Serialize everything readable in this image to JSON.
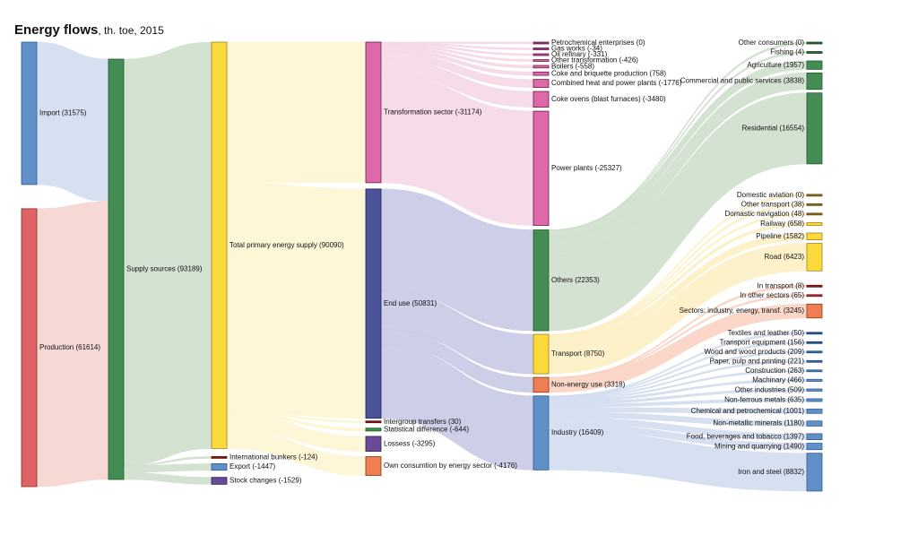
{
  "title": {
    "main": "Energy flows",
    "sub": ", th. toe, 2015"
  },
  "chart_data": {
    "type": "sankey",
    "title": "Energy flows, th. toe, 2015",
    "units": "th. toe",
    "year": 2015,
    "nodes": [
      {
        "id": "import",
        "label": "Import (31575)",
        "name": "Import",
        "value": 31575,
        "column": 0,
        "color": "#6190c9"
      },
      {
        "id": "production",
        "label": "Production (61614)",
        "name": "Production",
        "value": 61614,
        "column": 0,
        "color": "#de6364"
      },
      {
        "id": "supply",
        "label": "Supply sources (93189)",
        "name": "Supply sources",
        "value": 93189,
        "column": 1,
        "color": "#448c53"
      },
      {
        "id": "tpes",
        "label": "Total primary energy supply (90090)",
        "name": "Total primary energy supply",
        "value": 90090,
        "column": 2,
        "color": "#fdd93b"
      },
      {
        "id": "bunkers",
        "label": "International bunkers (-124)",
        "name": "International bunkers",
        "value": -124,
        "column": 2,
        "color": "#8b1a1a"
      },
      {
        "id": "export",
        "label": "Export (-1447)",
        "name": "Export",
        "value": -1447,
        "column": 2,
        "color": "#6190c9"
      },
      {
        "id": "stock",
        "label": "Stock changes (-1529)",
        "name": "Stock changes",
        "value": -1529,
        "column": 2,
        "color": "#6a4a96"
      },
      {
        "id": "transform",
        "label": "Transformation sector (-31174)",
        "name": "Transformation sector",
        "value": -31174,
        "column": 3,
        "color": "#dd69a8"
      },
      {
        "id": "enduse",
        "label": "End use (50831)",
        "name": "End use",
        "value": 50831,
        "column": 3,
        "color": "#4a5299"
      },
      {
        "id": "intergroup",
        "label": "Intergroup transfers (30)",
        "name": "Intergroup transfers",
        "value": 30,
        "column": 3,
        "color": "#8b1a1a"
      },
      {
        "id": "statdiff",
        "label": "Statistical difference (-644)",
        "name": "Statistical difference",
        "value": -644,
        "column": 3,
        "color": "#3a9048"
      },
      {
        "id": "losses",
        "label": "Lossess (-3295)",
        "name": "Lossess",
        "value": -3295,
        "column": 3,
        "color": "#6a4a96"
      },
      {
        "id": "ownuse",
        "label": "Own consumtion by energy sector (-4176)",
        "name": "Own consumtion by energy sector",
        "value": -4176,
        "column": 3,
        "color": "#ef7f52"
      },
      {
        "id": "petrochem",
        "label": "Petrochemical enterprises (0)",
        "name": "Petrochemical enterprises",
        "value": 0,
        "column": 4,
        "color": "#a5336f"
      },
      {
        "id": "gasworks",
        "label": "Gas works (-34)",
        "name": "Gas works",
        "value": -34,
        "column": 4,
        "color": "#a5336f"
      },
      {
        "id": "oilref",
        "label": "Oil refinary (-331)",
        "name": "Oil refinary",
        "value": -331,
        "column": 4,
        "color": "#c04488"
      },
      {
        "id": "othertrans",
        "label": "Other transformation (-426)",
        "name": "Other transformation",
        "value": -426,
        "column": 4,
        "color": "#dd69a8"
      },
      {
        "id": "boilers",
        "label": "Boilers (-558)",
        "name": "Boilers",
        "value": -558,
        "column": 4,
        "color": "#dd69a8"
      },
      {
        "id": "coke",
        "label": "Coke and briquette production (758)",
        "name": "Coke and briquette production",
        "value": 758,
        "column": 4,
        "color": "#dd69a8"
      },
      {
        "id": "chp",
        "label": "Combined heat and power plants (-1776)",
        "name": "Combined heat and power plants",
        "value": -1776,
        "column": 4,
        "color": "#dd69a8"
      },
      {
        "id": "cokeovens",
        "label": "Coke ovens (blast furnaces) (-3480)",
        "name": "Coke ovens (blast furnaces)",
        "value": -3480,
        "column": 4,
        "color": "#dd69a8"
      },
      {
        "id": "powerplants",
        "label": "Power plants (-25327)",
        "name": "Power plants",
        "value": -25327,
        "column": 4,
        "color": "#dd69a8"
      },
      {
        "id": "others",
        "label": "Others (22353)",
        "name": "Others",
        "value": 22353,
        "column": 4,
        "color": "#448c53"
      },
      {
        "id": "transport",
        "label": "Transport (8750)",
        "name": "Transport",
        "value": 8750,
        "column": 4,
        "color": "#fdd93b"
      },
      {
        "id": "nonenergy",
        "label": "Non-energy use (3318)",
        "name": "Non-energy use",
        "value": 3318,
        "column": 4,
        "color": "#ef7f52"
      },
      {
        "id": "industry",
        "label": "Industry (16409)",
        "name": "Industry",
        "value": 16409,
        "column": 4,
        "color": "#6190c9"
      },
      {
        "id": "othercons",
        "label": "Other consumers (0)",
        "name": "Other consumers",
        "value": 0,
        "column": 5,
        "color": "#2d6a36"
      },
      {
        "id": "fishing",
        "label": "Fishing (4)",
        "name": "Fishing",
        "value": 4,
        "column": 5,
        "color": "#2d6a36"
      },
      {
        "id": "agri",
        "label": "Agriculture (1957)",
        "name": "Agriculture",
        "value": 1957,
        "column": 5,
        "color": "#448c53"
      },
      {
        "id": "commercial",
        "label": "Commercial and public services (3838)",
        "name": "Commercial and public services",
        "value": 3838,
        "column": 5,
        "color": "#448c53"
      },
      {
        "id": "residential",
        "label": "Residential (16554)",
        "name": "Residential",
        "value": 16554,
        "column": 5,
        "color": "#448c53"
      },
      {
        "id": "domaviation",
        "label": "Domestic aviation (0)",
        "name": "Domestic aviation",
        "value": 0,
        "column": 5,
        "color": "#8a7020"
      },
      {
        "id": "othertransport",
        "label": "Other transport (38)",
        "name": "Other transport",
        "value": 38,
        "column": 5,
        "color": "#8a7020"
      },
      {
        "id": "domnav",
        "label": "Domastic navigation (48)",
        "name": "Domastic navigation",
        "value": 48,
        "column": 5,
        "color": "#8a7020"
      },
      {
        "id": "railway",
        "label": "Railway (658)",
        "name": "Railway",
        "value": 658,
        "column": 5,
        "color": "#fdd93b"
      },
      {
        "id": "pipeline",
        "label": "Pipeline (1582)",
        "name": "Pipeline",
        "value": 1582,
        "column": 5,
        "color": "#fdd93b"
      },
      {
        "id": "road",
        "label": "Road (6423)",
        "name": "Road",
        "value": 6423,
        "column": 5,
        "color": "#fdd93b"
      },
      {
        "id": "intransport",
        "label": "In transport (8)",
        "name": "In transport",
        "value": 8,
        "column": 5,
        "color": "#8b1a1a"
      },
      {
        "id": "inother",
        "label": "In other sectors (65)",
        "name": "In other sectors",
        "value": 65,
        "column": 5,
        "color": "#b03030"
      },
      {
        "id": "sectors",
        "label": "Sectors: industry, energy, transf. (3245)",
        "name": "Sectors: industry, energy, transf.",
        "value": 3245,
        "column": 5,
        "color": "#ef7f52"
      },
      {
        "id": "textiles",
        "label": "Textiles and leather (50)",
        "name": "Textiles and leather",
        "value": 50,
        "column": 5,
        "color": "#2f5a9a"
      },
      {
        "id": "transeq",
        "label": "Transport equipment (156)",
        "name": "Transport equipment",
        "value": 156,
        "column": 5,
        "color": "#2f5a9a"
      },
      {
        "id": "wood",
        "label": "Wood and wood products (209)",
        "name": "Wood and wood products",
        "value": 209,
        "column": 5,
        "color": "#3a6aaa"
      },
      {
        "id": "paper",
        "label": "Paper, pulp and printing (221)",
        "name": "Paper, pulp and printing",
        "value": 221,
        "column": 5,
        "color": "#3a6aaa"
      },
      {
        "id": "construction",
        "label": "Construction (263)",
        "name": "Construction",
        "value": 263,
        "column": 5,
        "color": "#4a78b8"
      },
      {
        "id": "machinery",
        "label": "Machinary (466)",
        "name": "Machinary",
        "value": 466,
        "column": 5,
        "color": "#6190c9"
      },
      {
        "id": "otherind",
        "label": "Other industries (509)",
        "name": "Other industries",
        "value": 509,
        "column": 5,
        "color": "#6190c9"
      },
      {
        "id": "nonferrous",
        "label": "Non-ferrous metals (635)",
        "name": "Non-ferrous metals",
        "value": 635,
        "column": 5,
        "color": "#6190c9"
      },
      {
        "id": "chemical",
        "label": "Chemical and petrochemical (1001)",
        "name": "Chemical and petrochemical",
        "value": 1001,
        "column": 5,
        "color": "#6190c9"
      },
      {
        "id": "nonmetallic",
        "label": "Non-metallic minerals (1180)",
        "name": "Non-metallic minerals",
        "value": 1180,
        "column": 5,
        "color": "#6190c9"
      },
      {
        "id": "food",
        "label": "Food, beverages and tobacco (1397)",
        "name": "Food, beverages and tobacco",
        "value": 1397,
        "column": 5,
        "color": "#6190c9"
      },
      {
        "id": "mining",
        "label": "Mining and quarrying (1490)",
        "name": "Mining and quarrying",
        "value": 1490,
        "column": 5,
        "color": "#6190c9"
      },
      {
        "id": "iron",
        "label": "Iron and steel (8832)",
        "name": "Iron and steel",
        "value": 8832,
        "column": 5,
        "color": "#6190c9"
      }
    ],
    "links": [
      {
        "source": "import",
        "target": "supply",
        "value": 31575,
        "color": "#d3ddf0"
      },
      {
        "source": "production",
        "target": "supply",
        "value": 61614,
        "color": "#f5d5cf"
      },
      {
        "source": "supply",
        "target": "tpes",
        "value": 90090,
        "color": "#cfdfcc"
      },
      {
        "source": "supply",
        "target": "bunkers",
        "value": 124,
        "color": "#cfdfcc"
      },
      {
        "source": "supply",
        "target": "export",
        "value": 1447,
        "color": "#cfdfcc"
      },
      {
        "source": "supply",
        "target": "stock",
        "value": 1529,
        "color": "#cfdfcc"
      },
      {
        "source": "tpes",
        "target": "transform",
        "value": 31174,
        "color": "#fdf5d3"
      },
      {
        "source": "tpes",
        "target": "enduse",
        "value": 50831,
        "color": "#fdf5d3"
      },
      {
        "source": "tpes",
        "target": "intergroup",
        "value": 30,
        "color": "#fdf5d3"
      },
      {
        "source": "tpes",
        "target": "statdiff",
        "value": 644,
        "color": "#fdf5d3"
      },
      {
        "source": "tpes",
        "target": "losses",
        "value": 3295,
        "color": "#fdf5d3"
      },
      {
        "source": "tpes",
        "target": "ownuse",
        "value": 4176,
        "color": "#fdf5d3"
      },
      {
        "source": "transform",
        "target": "petrochem",
        "value": 0,
        "color": "#f5d7e7"
      },
      {
        "source": "transform",
        "target": "gasworks",
        "value": 34,
        "color": "#f5d7e7"
      },
      {
        "source": "transform",
        "target": "oilref",
        "value": 331,
        "color": "#f5d7e7"
      },
      {
        "source": "transform",
        "target": "othertrans",
        "value": 426,
        "color": "#f5d7e7"
      },
      {
        "source": "transform",
        "target": "boilers",
        "value": 558,
        "color": "#f5d7e7"
      },
      {
        "source": "transform",
        "target": "coke",
        "value": 758,
        "color": "#f5d7e7"
      },
      {
        "source": "transform",
        "target": "chp",
        "value": 1776,
        "color": "#f5d7e7"
      },
      {
        "source": "transform",
        "target": "cokeovens",
        "value": 3480,
        "color": "#f5d7e7"
      },
      {
        "source": "transform",
        "target": "powerplants",
        "value": 25327,
        "color": "#f5d7e7"
      },
      {
        "source": "enduse",
        "target": "others",
        "value": 22353,
        "color": "#c8c9e4"
      },
      {
        "source": "enduse",
        "target": "transport",
        "value": 8750,
        "color": "#c8c9e4"
      },
      {
        "source": "enduse",
        "target": "nonenergy",
        "value": 3318,
        "color": "#c8c9e4"
      },
      {
        "source": "enduse",
        "target": "industry",
        "value": 16409,
        "color": "#c8c9e4"
      },
      {
        "source": "others",
        "target": "othercons",
        "value": 0,
        "color": "#cfdfcc"
      },
      {
        "source": "others",
        "target": "fishing",
        "value": 4,
        "color": "#cfdfcc"
      },
      {
        "source": "others",
        "target": "agri",
        "value": 1957,
        "color": "#cfdfcc"
      },
      {
        "source": "others",
        "target": "commercial",
        "value": 3838,
        "color": "#cfdfcc"
      },
      {
        "source": "others",
        "target": "residential",
        "value": 16554,
        "color": "#cfdfcc"
      },
      {
        "source": "transport",
        "target": "domaviation",
        "value": 0,
        "color": "#fdf0c4"
      },
      {
        "source": "transport",
        "target": "othertransport",
        "value": 38,
        "color": "#fdf0c4"
      },
      {
        "source": "transport",
        "target": "domnav",
        "value": 48,
        "color": "#fdf0c4"
      },
      {
        "source": "transport",
        "target": "railway",
        "value": 658,
        "color": "#fdf0c4"
      },
      {
        "source": "transport",
        "target": "pipeline",
        "value": 1582,
        "color": "#fdf0c4"
      },
      {
        "source": "transport",
        "target": "road",
        "value": 6423,
        "color": "#fdf0c4"
      },
      {
        "source": "nonenergy",
        "target": "intransport",
        "value": 8,
        "color": "#f9d3c2"
      },
      {
        "source": "nonenergy",
        "target": "inother",
        "value": 65,
        "color": "#f9d3c2"
      },
      {
        "source": "nonenergy",
        "target": "sectors",
        "value": 3245,
        "color": "#f9d3c2"
      },
      {
        "source": "industry",
        "target": "textiles",
        "value": 50,
        "color": "#d3ddf0"
      },
      {
        "source": "industry",
        "target": "transeq",
        "value": 156,
        "color": "#d3ddf0"
      },
      {
        "source": "industry",
        "target": "wood",
        "value": 209,
        "color": "#d3ddf0"
      },
      {
        "source": "industry",
        "target": "paper",
        "value": 221,
        "color": "#d3ddf0"
      },
      {
        "source": "industry",
        "target": "construction",
        "value": 263,
        "color": "#d3ddf0"
      },
      {
        "source": "industry",
        "target": "machinery",
        "value": 466,
        "color": "#d3ddf0"
      },
      {
        "source": "industry",
        "target": "otherind",
        "value": 509,
        "color": "#d3ddf0"
      },
      {
        "source": "industry",
        "target": "nonferrous",
        "value": 635,
        "color": "#d3ddf0"
      },
      {
        "source": "industry",
        "target": "chemical",
        "value": 1001,
        "color": "#d3ddf0"
      },
      {
        "source": "industry",
        "target": "nonmetallic",
        "value": 1180,
        "color": "#d3ddf0"
      },
      {
        "source": "industry",
        "target": "food",
        "value": 1397,
        "color": "#d3ddf0"
      },
      {
        "source": "industry",
        "target": "mining",
        "value": 1490,
        "color": "#d3ddf0"
      },
      {
        "source": "industry",
        "target": "iron",
        "value": 8832,
        "color": "#d3ddf0"
      }
    ]
  }
}
